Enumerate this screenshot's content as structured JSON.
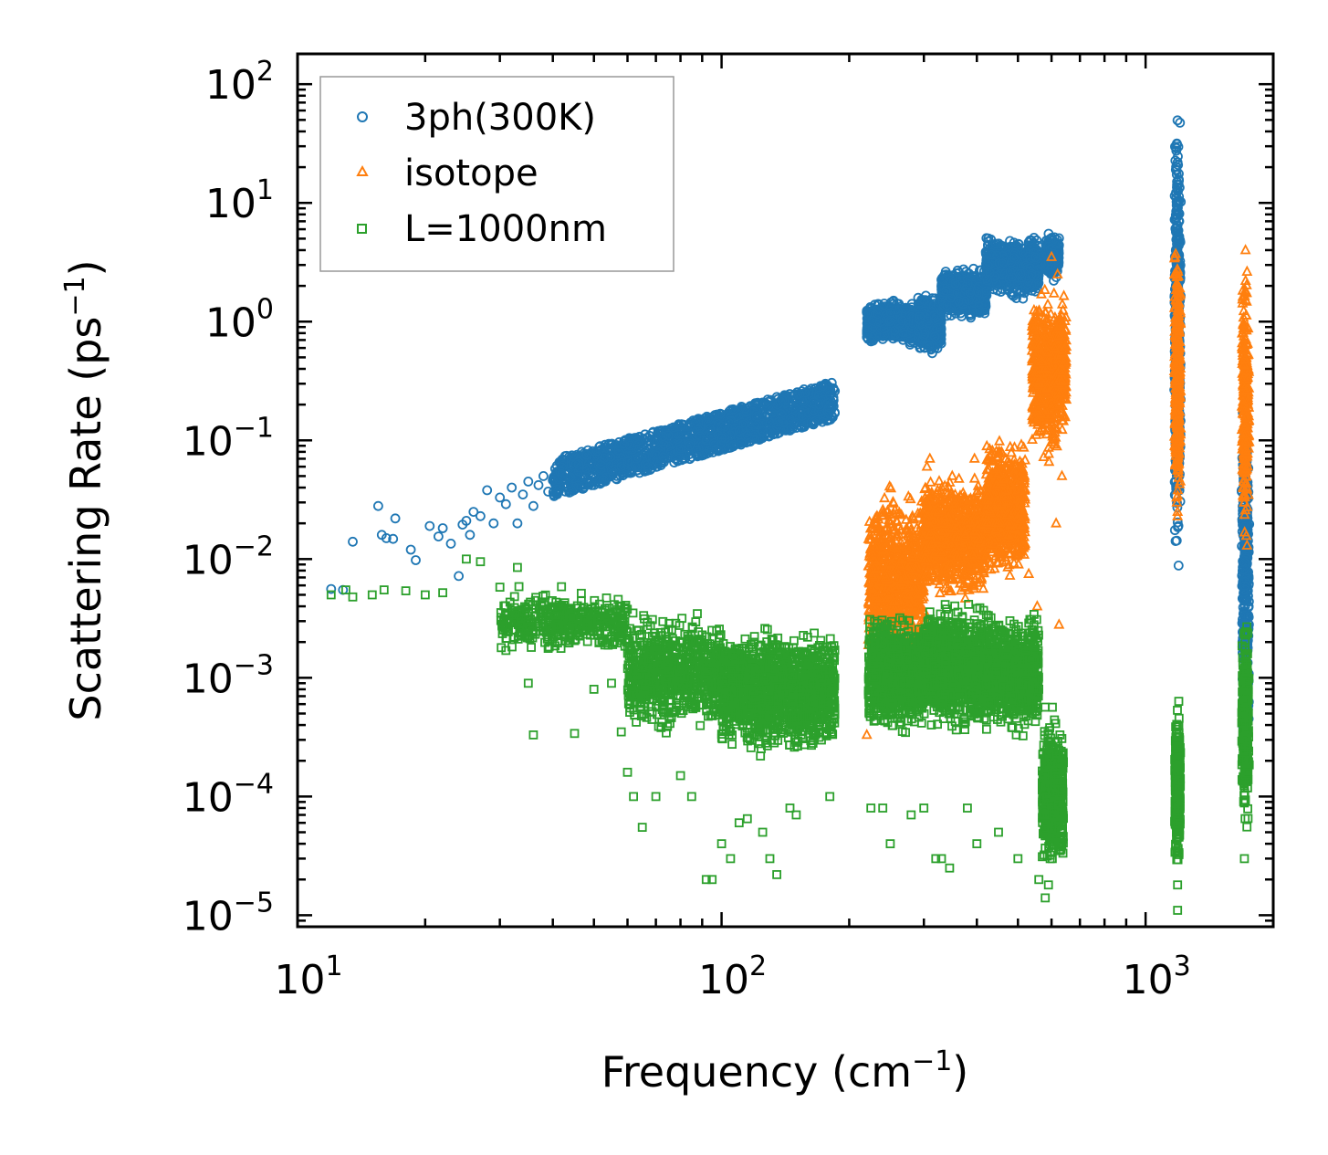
{
  "chart_data": {
    "type": "scatter",
    "title": "",
    "xlabel": "Frequency (cm",
    "xlabel_sup": "−1",
    "xlabel_end": ")",
    "ylabel": "Scattering Rate (ps",
    "ylabel_sup": "−1",
    "ylabel_end": ")",
    "xscale": "log",
    "yscale": "log",
    "xlim": [
      10,
      2000
    ],
    "ylim": [
      8e-06,
      180
    ],
    "legend_position": "top-left",
    "x_ticks": [
      {
        "base": "10",
        "exp": "1",
        "value": 10
      },
      {
        "base": "10",
        "exp": "2",
        "value": 100
      },
      {
        "base": "10",
        "exp": "3",
        "value": 1000
      }
    ],
    "y_ticks": [
      {
        "base": "10",
        "exp": "2",
        "value": 100
      },
      {
        "base": "10",
        "exp": "1",
        "value": 10
      },
      {
        "base": "10",
        "exp": "0",
        "value": 1
      },
      {
        "base": "10",
        "exp": "−1",
        "value": 0.1
      },
      {
        "base": "10",
        "exp": "−2",
        "value": 0.01
      },
      {
        "base": "10",
        "exp": "−3",
        "value": 0.001
      },
      {
        "base": "10",
        "exp": "−4",
        "value": 0.0001
      },
      {
        "base": "10",
        "exp": "−5",
        "value": 1e-05
      }
    ],
    "series": [
      {
        "name": "3ph(300K)",
        "marker": "circle",
        "color": "#1f77b4",
        "points": [
          [
            12,
            0.0056
          ],
          [
            12.8,
            0.0055
          ],
          [
            13.5,
            0.014
          ],
          [
            15.5,
            0.028
          ],
          [
            15.8,
            0.016
          ],
          [
            16.2,
            0.015
          ],
          [
            16.8,
            0.0148
          ],
          [
            17,
            0.022
          ],
          [
            18.5,
            0.012
          ],
          [
            19,
            0.0098
          ],
          [
            20.5,
            0.019
          ],
          [
            21.5,
            0.0155
          ],
          [
            22,
            0.0182
          ],
          [
            23,
            0.0135
          ],
          [
            24,
            0.0072
          ],
          [
            24.5,
            0.0195
          ],
          [
            25,
            0.021
          ],
          [
            25.5,
            0.016
          ],
          [
            26,
            0.025
          ],
          [
            27,
            0.023
          ],
          [
            28,
            0.038
          ],
          [
            29,
            0.02
          ],
          [
            30,
            0.033
          ],
          [
            31,
            0.029
          ],
          [
            32,
            0.04
          ],
          [
            33,
            0.02
          ],
          [
            34,
            0.035
          ],
          [
            35,
            0.045
          ],
          [
            36,
            0.028
          ],
          [
            37,
            0.042
          ],
          [
            38,
            0.05
          ],
          [
            39,
            0.037
          ],
          [
            40,
            0.046
          ],
          [
            42,
            0.052
          ],
          [
            44,
            0.049
          ],
          [
            46,
            0.055
          ],
          [
            48,
            0.058
          ],
          [
            50,
            0.05
          ],
          [
            52,
            0.062
          ],
          [
            55,
            0.056
          ],
          [
            58,
            0.06
          ],
          [
            60,
            0.066
          ],
          [
            63,
            0.07
          ],
          [
            66,
            0.063
          ],
          [
            70,
            0.075
          ],
          [
            73,
            0.072
          ],
          [
            76,
            0.08
          ],
          [
            80,
            0.085
          ],
          [
            84,
            0.09
          ],
          [
            88,
            0.095
          ],
          [
            92,
            0.1
          ],
          [
            96,
            0.095
          ],
          [
            100,
            0.105
          ],
          [
            105,
            0.11
          ],
          [
            110,
            0.12
          ],
          [
            115,
            0.11
          ],
          [
            120,
            0.13
          ],
          [
            125,
            0.12
          ],
          [
            130,
            0.14
          ],
          [
            135,
            0.13
          ],
          [
            140,
            0.14
          ],
          [
            145,
            0.15
          ],
          [
            150,
            0.14
          ],
          [
            155,
            0.16
          ],
          [
            160,
            0.17
          ],
          [
            165,
            0.18
          ],
          [
            170,
            0.2
          ],
          [
            175,
            0.22
          ],
          [
            180,
            0.24
          ],
          [
            185,
            0.26
          ]
        ],
        "clusters": [
          {
            "x": [
              40,
              185
            ],
            "y": [
              0.05,
              0.26
            ],
            "n": 1500,
            "spread": 0.2,
            "trend": true,
            "y0": 0.048,
            "y1": 0.22
          },
          {
            "x": [
              220,
              290
            ],
            "y": [
              0.6,
              1.6
            ],
            "n": 700,
            "spread": 0.15
          },
          {
            "x": [
              290,
              330
            ],
            "y": [
              0.5,
              1.8
            ],
            "n": 500,
            "spread": 0.2
          },
          {
            "x": [
              330,
              420
            ],
            "y": [
              1.0,
              3.0
            ],
            "n": 800,
            "spread": 0.15
          },
          {
            "x": [
              420,
              560
            ],
            "y": [
              1.5,
              5.5
            ],
            "n": 800,
            "spread": 0.15
          },
          {
            "x": [
              580,
              625
            ],
            "y": [
              2.0,
              6.5
            ],
            "n": 200,
            "spread": 0.1
          },
          {
            "x": [
              1180,
              1200
            ],
            "y": [
              0.006,
              80
            ],
            "n": 600,
            "spread": 0
          },
          {
            "x": [
              1700,
              1740
            ],
            "y": [
              0.0001,
              0.5
            ],
            "n": 400,
            "spread": 0
          }
        ]
      },
      {
        "name": "isotope",
        "marker": "triangle",
        "color": "#ff7f0e",
        "points": [
          [
            220,
            0.00033
          ],
          [
            305,
            0.06
          ],
          [
            310,
            0.07
          ],
          [
            350,
            0.05
          ],
          [
            395,
            0.07
          ],
          [
            600,
            3.5
          ],
          [
            620,
            2.5
          ],
          [
            610,
            0.6
          ],
          [
            635,
            0.05
          ],
          [
            615,
            0.02
          ],
          [
            625,
            0.0028
          ],
          [
            555,
            0.004
          ],
          [
            530,
            0.0075
          ],
          [
            1190,
            0.025
          ],
          [
            1185,
            0.03
          ],
          [
            1720,
            4.0
          ],
          [
            1730,
            0.04
          ],
          [
            1735,
            0.013
          ],
          [
            1710,
            0.03
          ]
        ],
        "clusters": [
          {
            "x": [
              222,
              300
            ],
            "y": [
              0.001,
              0.05
            ],
            "n": 800,
            "spread": 0.3
          },
          {
            "x": [
              300,
              420
            ],
            "y": [
              0.004,
              0.06
            ],
            "n": 900,
            "spread": 0.3
          },
          {
            "x": [
              420,
              520
            ],
            "y": [
              0.006,
              0.12
            ],
            "n": 700,
            "spread": 0.3
          },
          {
            "x": [
              540,
              620
            ],
            "y": [
              0.05,
              2.5
            ],
            "n": 500,
            "spread": 0.3
          },
          {
            "x": [
              620,
              650
            ],
            "y": [
              0.1,
              2.0
            ],
            "n": 200,
            "spread": 0.2
          },
          {
            "x": [
              1180,
              1200
            ],
            "y": [
              0.02,
              5
            ],
            "n": 400,
            "spread": 0
          },
          {
            "x": [
              1700,
              1740
            ],
            "y": [
              0.01,
              4
            ],
            "n": 300,
            "spread": 0
          }
        ]
      },
      {
        "name": "L=1000nm",
        "marker": "square",
        "color": "#2ca02c",
        "points": [
          [
            12,
            0.005
          ],
          [
            13,
            0.0055
          ],
          [
            13.5,
            0.0048
          ],
          [
            15,
            0.005
          ],
          [
            16,
            0.0055
          ],
          [
            18,
            0.0054
          ],
          [
            20,
            0.005
          ],
          [
            22,
            0.0052
          ],
          [
            25,
            0.01
          ],
          [
            27,
            0.0095
          ],
          [
            30,
            0.0058
          ],
          [
            31,
            0.0017
          ],
          [
            33,
            0.0085
          ],
          [
            35,
            0.0009
          ],
          [
            36,
            0.00033
          ],
          [
            45,
            0.00034
          ],
          [
            50,
            0.0008
          ],
          [
            55,
            0.0009
          ],
          [
            58,
            0.00035
          ],
          [
            60,
            0.00016
          ],
          [
            62,
            0.0001
          ],
          [
            65,
            5.5e-05
          ],
          [
            70,
            0.0001
          ],
          [
            80,
            0.00015
          ],
          [
            85,
            0.0001
          ],
          [
            92,
            2e-05
          ],
          [
            95,
            2e-05
          ],
          [
            100,
            4e-05
          ],
          [
            105,
            3e-05
          ],
          [
            110,
            6e-05
          ],
          [
            115,
            6.5e-05
          ],
          [
            125,
            5e-05
          ],
          [
            130,
            3e-05
          ],
          [
            135,
            2.2e-05
          ],
          [
            145,
            8e-05
          ],
          [
            150,
            7e-05
          ],
          [
            180,
            0.0001
          ],
          [
            225,
            8e-05
          ],
          [
            240,
            8e-05
          ],
          [
            250,
            4e-05
          ],
          [
            280,
            7e-05
          ],
          [
            300,
            8e-05
          ],
          [
            320,
            3e-05
          ],
          [
            330,
            3e-05
          ],
          [
            345,
            2.5e-05
          ],
          [
            380,
            8e-05
          ],
          [
            400,
            4e-05
          ],
          [
            450,
            5e-05
          ],
          [
            500,
            3e-05
          ],
          [
            560,
            2e-05
          ],
          [
            580,
            1.4e-05
          ],
          [
            590,
            1.8e-05
          ],
          [
            1190,
            1.1e-05
          ],
          [
            1190,
            1.8e-05
          ],
          [
            1710,
            3e-05
          ]
        ],
        "clusters": [
          {
            "x": [
              30,
              60
            ],
            "y": [
              0.0015,
              0.006
            ],
            "n": 400,
            "spread": 0.3
          },
          {
            "x": [
              60,
              100
            ],
            "y": [
              0.0003,
              0.004
            ],
            "n": 700,
            "spread": 0.3
          },
          {
            "x": [
              100,
              185
            ],
            "y": [
              0.0002,
              0.003
            ],
            "n": 1400,
            "spread": 0.3
          },
          {
            "x": [
              222,
              300
            ],
            "y": [
              0.0003,
              0.004
            ],
            "n": 900,
            "spread": 0.3
          },
          {
            "x": [
              300,
              420
            ],
            "y": [
              0.0003,
              0.005
            ],
            "n": 1000,
            "spread": 0.3
          },
          {
            "x": [
              420,
              560
            ],
            "y": [
              0.0003,
              0.004
            ],
            "n": 800,
            "spread": 0.3
          },
          {
            "x": [
              570,
              640
            ],
            "y": [
              2e-05,
              0.0006
            ],
            "n": 500,
            "spread": 0.3
          },
          {
            "x": [
              1180,
              1200
            ],
            "y": [
              2e-05,
              0.0007
            ],
            "n": 300,
            "spread": 0
          },
          {
            "x": [
              1700,
              1740
            ],
            "y": [
              4e-05,
              0.004
            ],
            "n": 300,
            "spread": 0
          }
        ]
      }
    ]
  }
}
